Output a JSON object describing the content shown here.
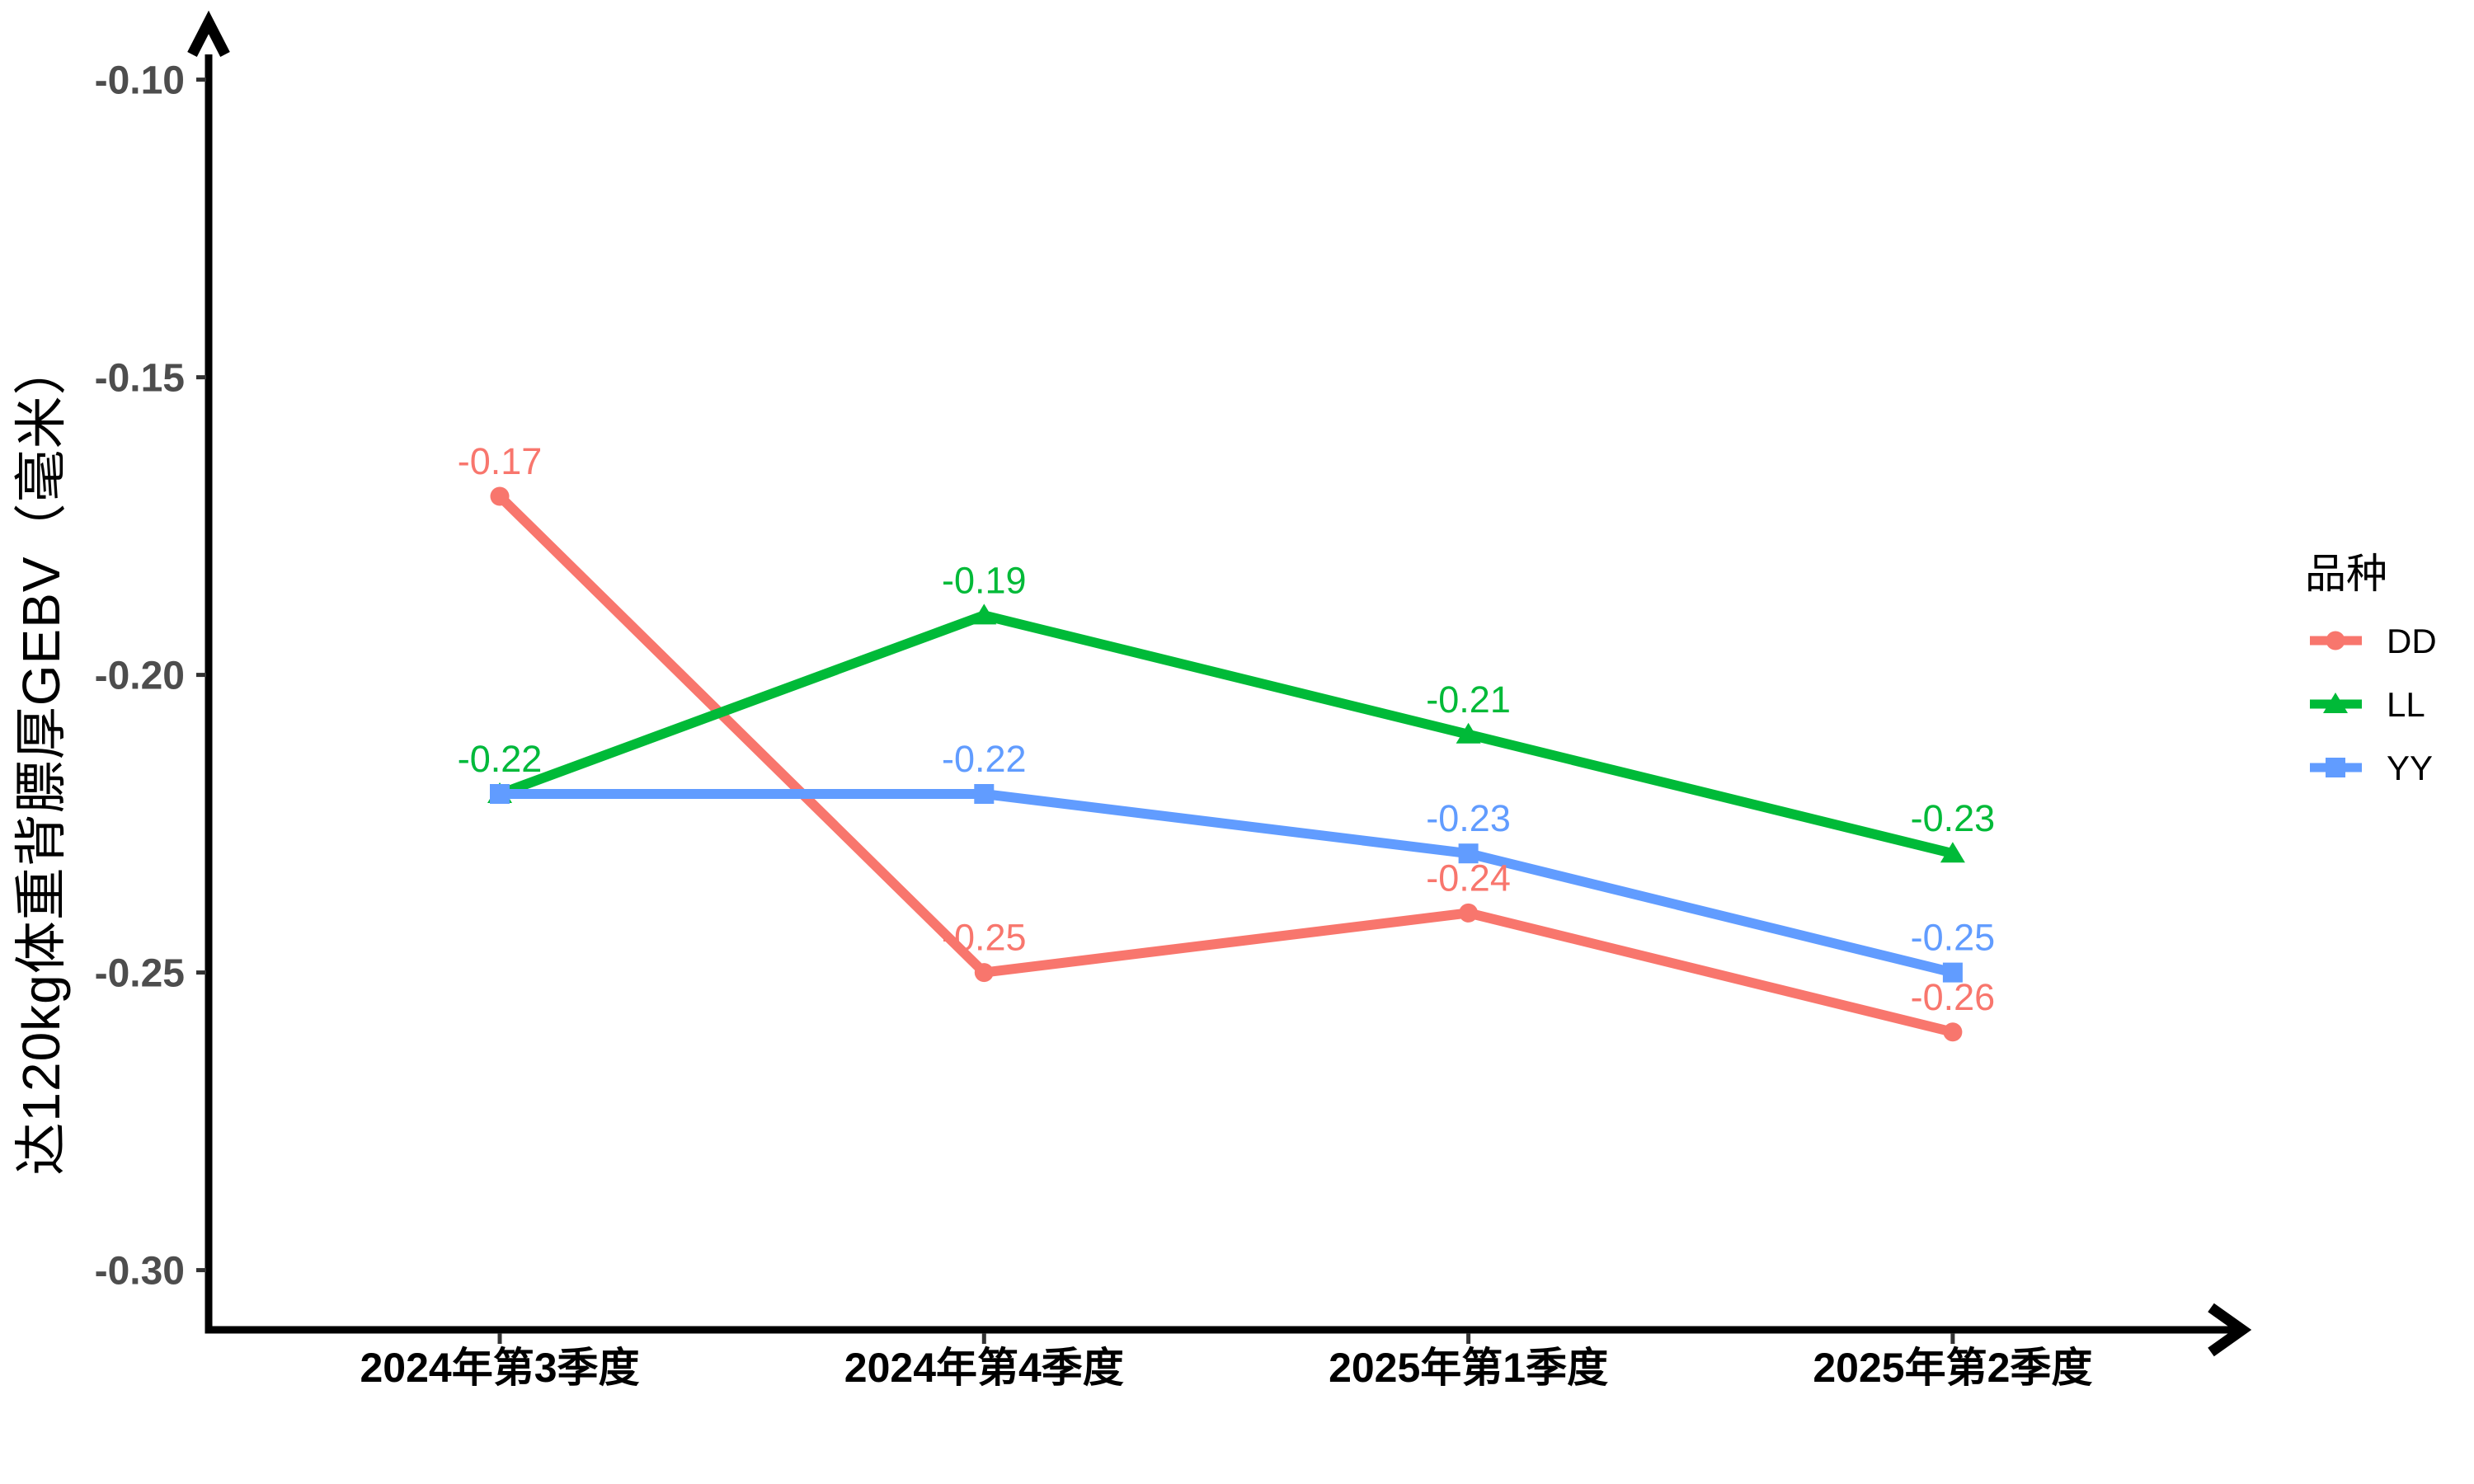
{
  "chart_data": {
    "type": "line",
    "title": "",
    "xlabel": "",
    "grid": false,
    "background": "#ffffff",
    "y_axis": {
      "title": "达120kg体重背膘厚GEBV（毫米）",
      "ticks": [
        "-0.10",
        "-0.15",
        "-0.20",
        "-0.25",
        "-0.30"
      ],
      "tick_step": 0.05,
      "color": "#000000",
      "tick_label_color": "#4d4d4d"
    },
    "x_axis": {
      "categories": [
        "2024年第3季度",
        "2024年第4季度",
        "2025年第1季度",
        "2025年第2季度"
      ],
      "color": "#000000",
      "tick_label_color": "#000000"
    },
    "legend": {
      "title": "品种",
      "position": "right",
      "items": [
        {
          "label": "DD",
          "color": "#F8766D",
          "marker": "circle"
        },
        {
          "label": "LL",
          "color": "#00BA38",
          "marker": "triangle"
        },
        {
          "label": "YY",
          "color": "#619CFF",
          "marker": "square"
        }
      ]
    },
    "series": [
      {
        "name": "DD",
        "color": "#F8766D",
        "marker": "circle",
        "values": [
          -0.17,
          -0.25,
          -0.24,
          -0.26
        ],
        "labels": [
          "-0.17",
          "-0.25",
          "-0.24",
          "-0.26"
        ]
      },
      {
        "name": "LL",
        "color": "#00BA38",
        "marker": "triangle",
        "values": [
          -0.22,
          -0.19,
          -0.21,
          -0.23
        ],
        "labels": [
          "-0.22",
          "-0.19",
          "-0.21",
          "-0.23"
        ]
      },
      {
        "name": "YY",
        "color": "#619CFF",
        "marker": "square",
        "values": [
          -0.22,
          -0.22,
          -0.23,
          -0.25
        ],
        "labels": [
          "-0.22",
          "-0.22",
          "-0.23",
          "-0.25"
        ]
      }
    ]
  }
}
